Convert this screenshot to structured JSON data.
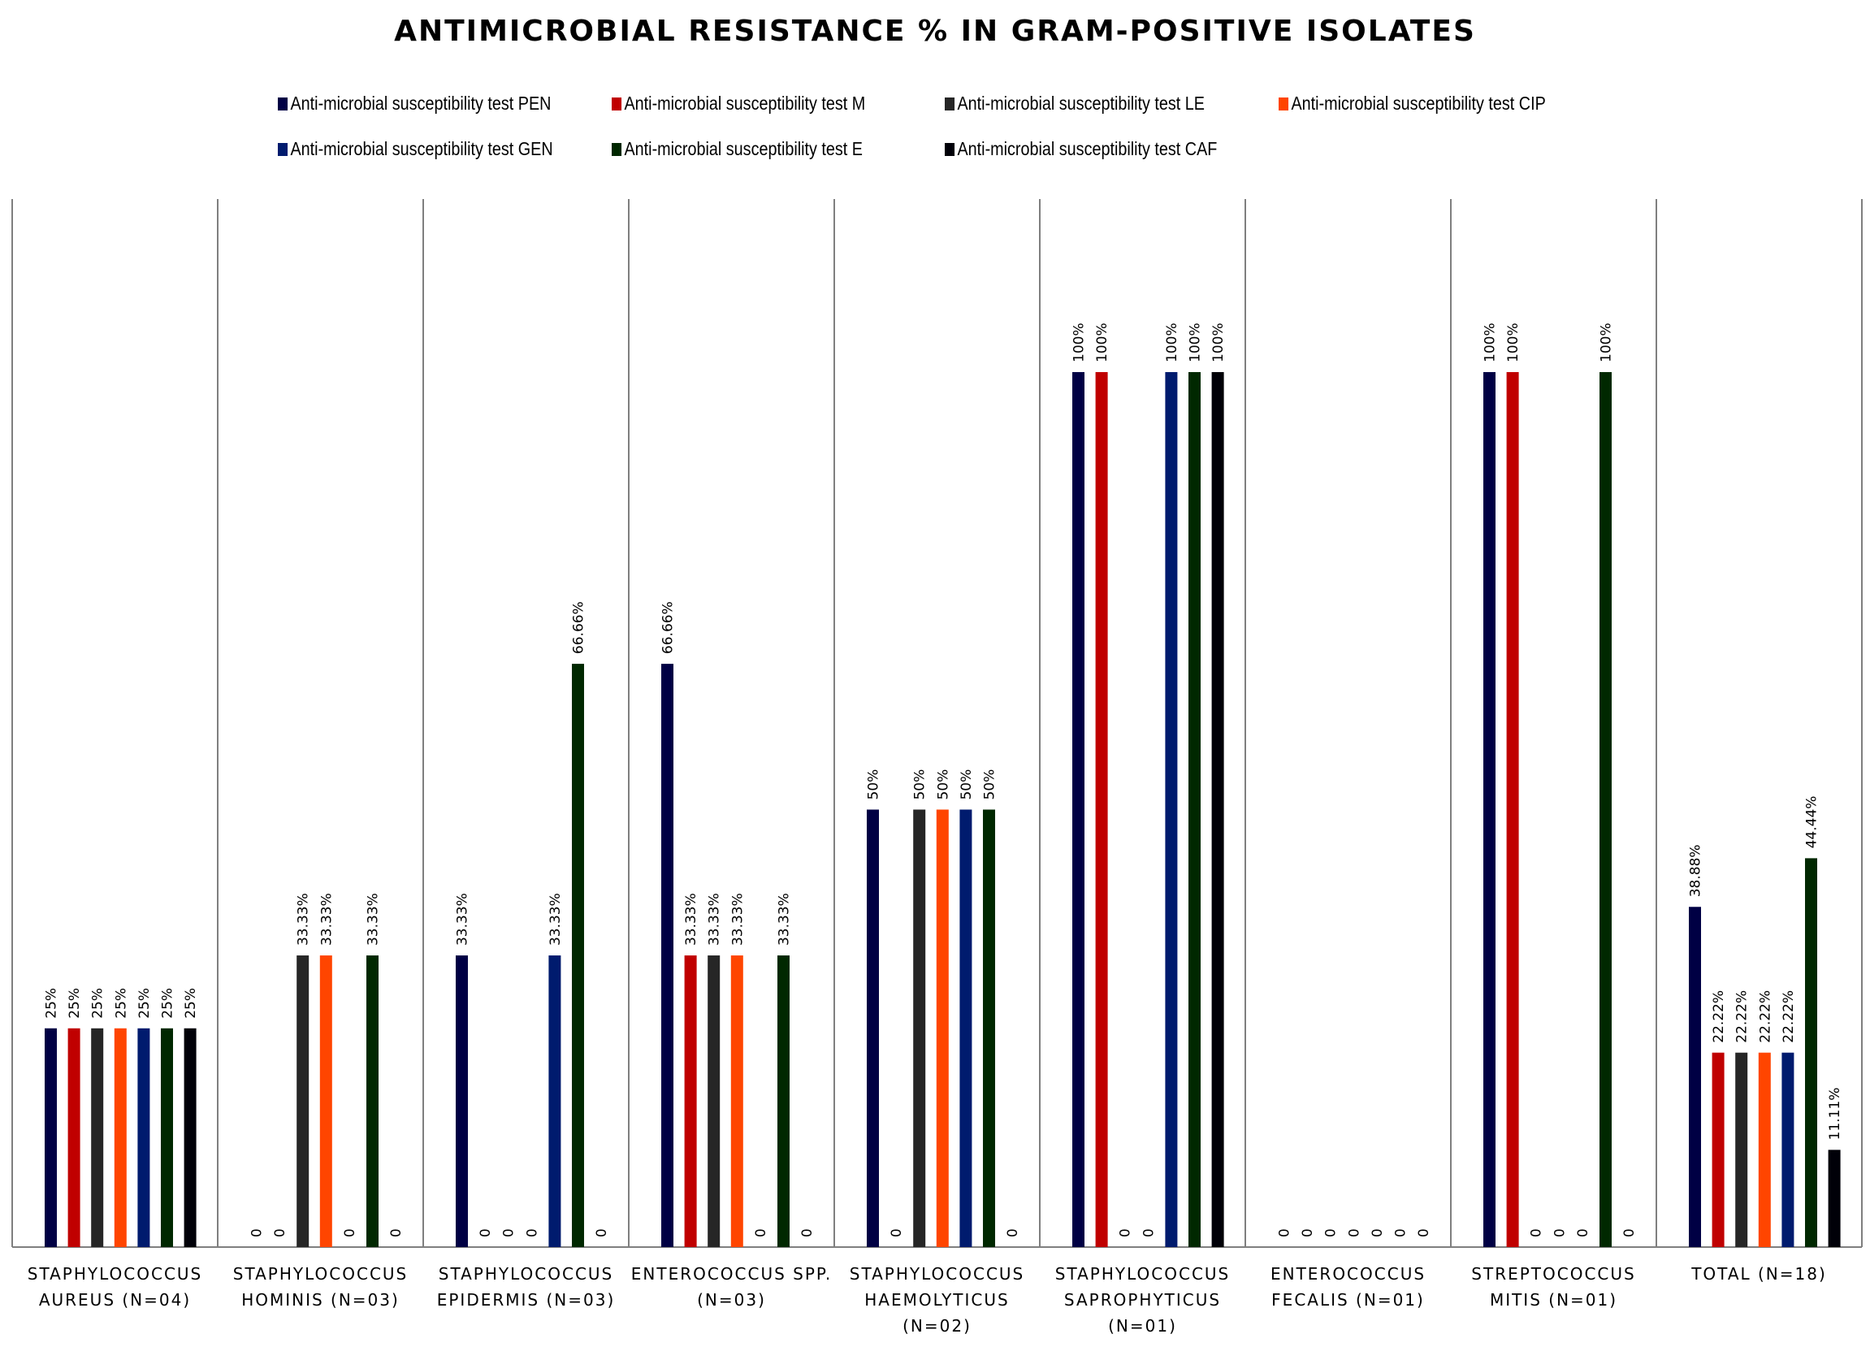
{
  "chart_data": {
    "type": "bar",
    "title": "ANTIMICROBIAL RESISTANCE % IN GRAM-POSITIVE ISOLATES",
    "xlabel": "",
    "ylabel": "",
    "ylim": [
      0,
      100
    ],
    "grid": false,
    "legend_position": "top",
    "categories": [
      [
        "STAPHYLOCOCCUS",
        "AUREUS (N=04)"
      ],
      [
        "STAPHYLOCOCCUS",
        "HOMINIS (N=03)"
      ],
      [
        "STAPHYLOCOCCUS",
        "EPIDERMIS (N=03)"
      ],
      [
        "ENTEROCOCCUS SPP.",
        "(N=03)"
      ],
      [
        "STAPHYLOCOCCUS",
        "HAEMOLYTICUS",
        "(N=02)"
      ],
      [
        "STAPHYLOCOCCUS",
        "SAPROPHYTICUS",
        "(N=01)"
      ],
      [
        "ENTEROCOCCUS",
        "FECALIS (N=01)"
      ],
      [
        "STREPTOCOCCUS",
        "MITIS (N=01)"
      ],
      [
        "TOTAL (N=18)"
      ]
    ],
    "series": [
      {
        "name": "Anti-microbial susceptibility test PEN",
        "color": "#000044",
        "values": [
          25,
          0,
          33.33,
          66.66,
          50,
          100,
          0,
          100,
          38.88
        ]
      },
      {
        "name": "Anti-microbial susceptibility test M",
        "color": "#c00000",
        "values": [
          25,
          0,
          0,
          33.33,
          0,
          100,
          0,
          100,
          22.22
        ]
      },
      {
        "name": "Anti-microbial susceptibility test LE",
        "color": "#262626",
        "values": [
          25,
          33.33,
          0,
          33.33,
          50,
          0,
          0,
          0,
          22.22
        ]
      },
      {
        "name": "Anti-microbial susceptibility test CIP",
        "color": "#ff4500",
        "values": [
          25,
          33.33,
          0,
          33.33,
          50,
          0,
          0,
          0,
          22.22
        ]
      },
      {
        "name": "Anti-microbial susceptibility test GEN",
        "color": "#001b6e",
        "values": [
          25,
          0,
          33.33,
          0,
          50,
          100,
          0,
          0,
          22.22
        ]
      },
      {
        "name": "Anti-microbial susceptibility test E",
        "color": "#002800",
        "values": [
          25,
          33.33,
          66.66,
          33.33,
          50,
          100,
          0,
          100,
          44.44
        ]
      },
      {
        "name": "Anti-microbial susceptibility test CAF",
        "color": "#000008",
        "values": [
          25,
          0,
          0,
          0,
          0,
          100,
          0,
          0,
          11.11
        ]
      }
    ]
  }
}
